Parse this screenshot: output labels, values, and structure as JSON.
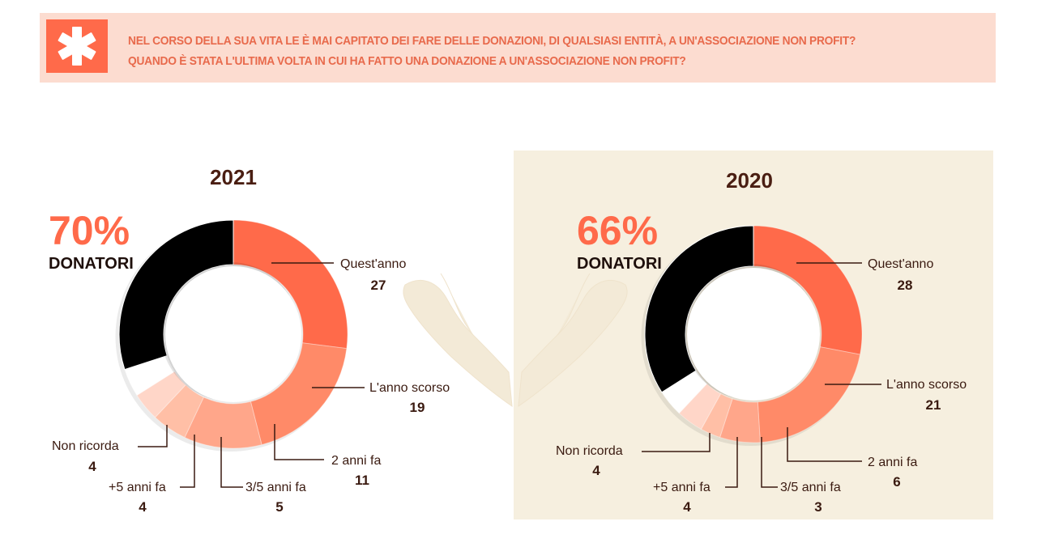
{
  "header": {
    "question_line1": "NEL CORSO DELLA SUA VITA LE È MAI CAPITATO DEI FARE DELLE DONAZIONI, DI QUALSIASI ENTITÀ, A UN'ASSOCIAZIONE NON PROFIT?",
    "question_line2": "QUANDO È STATA L'ULTIMA VOLTA IN CUI HA FATTO UNA DONAZIONE A UN'ASSOCIAZIONE NON PROFIT?",
    "icon": "asterisk-icon"
  },
  "colors": {
    "accent": "#ff6a4a",
    "banner_bg": "#fcdcd0",
    "panel_bg": "#f6efdf",
    "dark_text": "#3a1a10",
    "slices": [
      "#ff6a4a",
      "#ff8a68",
      "#ffa68a",
      "#ffbfa6",
      "#ffd6c8",
      "#ffffff"
    ]
  },
  "decoration": {
    "icon": "open-hands-icon"
  },
  "chart_data": [
    {
      "type": "pie",
      "title": "2021",
      "headline_value": "70%",
      "headline_label": "DONATORI",
      "categories": [
        "Quest'anno",
        "L'anno scorso",
        "2 anni fa",
        "3/5 anni fa",
        "+5 anni fa",
        "Non ricorda",
        ""
      ],
      "values": [
        27,
        19,
        11,
        5,
        4,
        4,
        30
      ]
    },
    {
      "type": "pie",
      "title": "2020",
      "headline_value": "66%",
      "headline_label": "DONATORI",
      "categories": [
        "Quest'anno",
        "L'anno scorso",
        "2 anni fa",
        "3/5 anni fa",
        "+5 anni fa",
        "Non ricorda",
        ""
      ],
      "values": [
        28,
        21,
        6,
        3,
        4,
        4,
        34
      ]
    }
  ]
}
